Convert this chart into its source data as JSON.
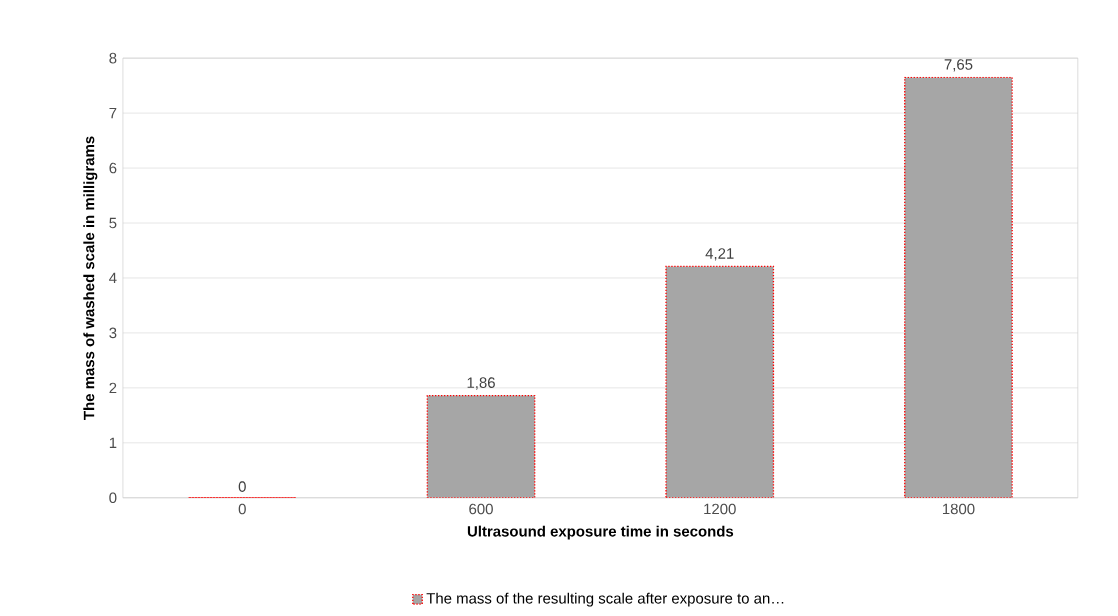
{
  "chart_data": {
    "type": "bar",
    "xlabel": "Ultrasound exposure time in seconds",
    "ylabel": "The mass of washed scale in milligrams",
    "categories": [
      "0",
      "600",
      "1200",
      "1800"
    ],
    "series": [
      {
        "name": "The mass of the resulting scale after exposure to an…",
        "color": "#a6a6a6",
        "values": [
          0,
          1.86,
          4.21,
          7.65
        ],
        "value_labels": [
          "0",
          "1,86",
          "4,21",
          "7,65"
        ]
      }
    ],
    "ylim": [
      0,
      8
    ],
    "yticks": [
      0,
      1,
      2,
      3,
      4,
      5,
      6,
      7,
      8
    ],
    "grid": "y",
    "legend": "bottom"
  }
}
